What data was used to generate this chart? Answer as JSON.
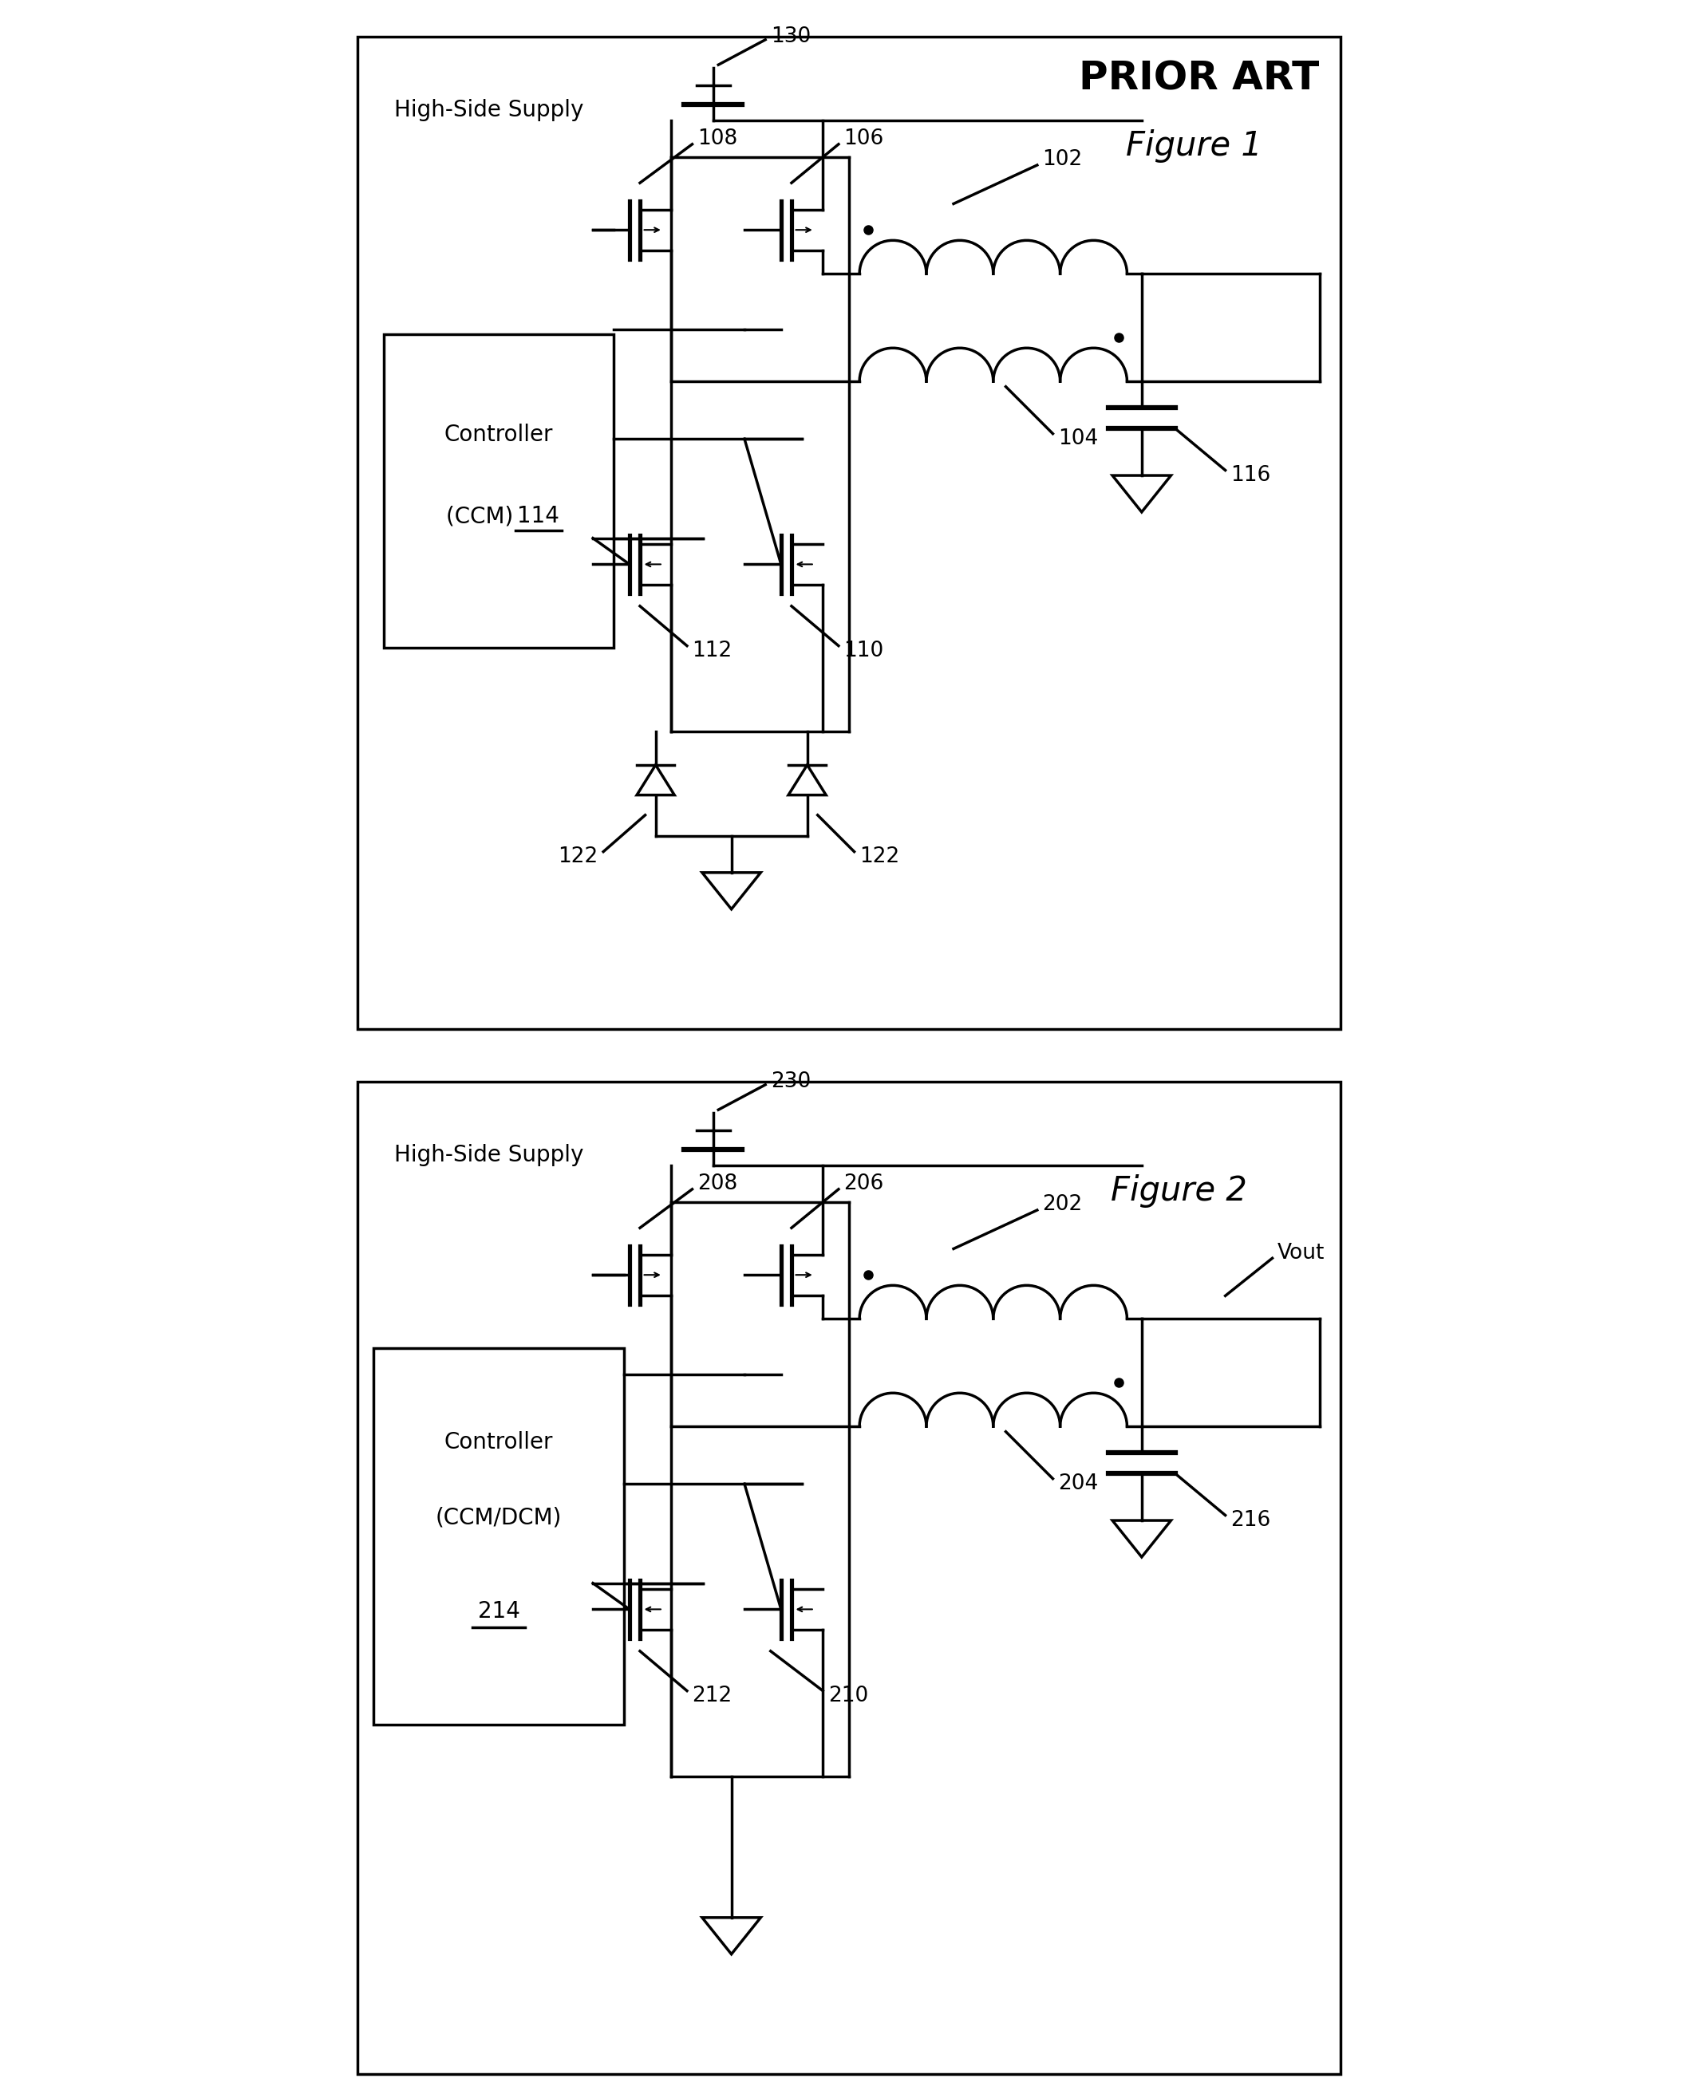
{
  "fig_width": 21.28,
  "fig_height": 26.2,
  "bg_color": "#ffffff",
  "line_color": "#000000",
  "line_width": 2.5,
  "fig1": {
    "title": "PRIOR ART",
    "subtitle": "Figure 1",
    "controller_line1": "Controller",
    "controller_line2": "(CCM) ",
    "controller_num": "114",
    "high_side_text": "High-Side Supply",
    "labels": {
      "130": "130",
      "106": "106",
      "102": "102",
      "104": "104",
      "108": "108",
      "110": "110",
      "112": "112",
      "116": "116",
      "122a": "122",
      "122b": "122"
    }
  },
  "fig2": {
    "title": "Figure 2",
    "controller_line1": "Controller",
    "controller_line2": "(CCM/DCM)",
    "controller_num": "214",
    "high_side_text": "High-Side Supply",
    "label_vout": "Vout",
    "labels": {
      "230": "230",
      "206": "206",
      "202": "202",
      "204": "204",
      "208": "208",
      "210": "210",
      "212": "212",
      "216": "216"
    }
  }
}
